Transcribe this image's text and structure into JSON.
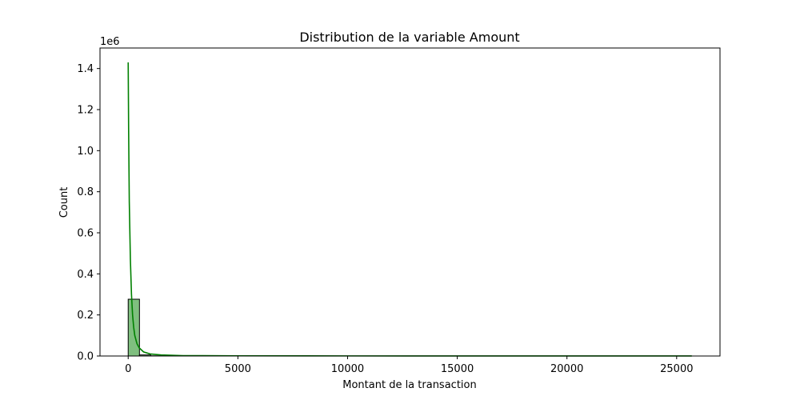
{
  "chart_data": {
    "type": "bar",
    "title": "Distribution de la variable Amount",
    "xlabel": "Montant de la transaction",
    "ylabel": "Count",
    "y_multiplier_label": "1e6",
    "xlim": [
      -1285,
      26976
    ],
    "ylim": [
      0,
      1.5
    ],
    "x_ticks": [
      0,
      5000,
      10000,
      15000,
      20000,
      25000
    ],
    "y_ticks": [
      0,
      0.2,
      0.4,
      0.6,
      0.8,
      1.0,
      1.2,
      1.4
    ],
    "x_tick_labels": [
      "0",
      "5000",
      "10000",
      "15000",
      "20000",
      "25000"
    ],
    "y_tick_labels": [
      "0.0",
      "0.2",
      "0.4",
      "0.6",
      "0.8",
      "1.0",
      "1.2",
      "1.4"
    ],
    "grid": false,
    "colors": {
      "bar_fill": "#7fbf7f",
      "bar_edge": "#000000",
      "kde_line": "#008000"
    },
    "bins": [
      {
        "x0": 0,
        "x1": 514,
        "count": 0.2765
      },
      {
        "x0": 514,
        "x1": 1028,
        "count": 0.0052
      },
      {
        "x0": 1028,
        "x1": 1542,
        "count": 0.0011
      },
      {
        "x0": 1542,
        "x1": 2056,
        "count": 0.0004
      },
      {
        "x0": 2056,
        "x1": 2570,
        "count": 0.0002
      },
      {
        "x0": 2570,
        "x1": 3084,
        "count": 0.0001
      },
      {
        "x0": 3084,
        "x1": 25691,
        "count": 0.0
      }
    ],
    "kde": {
      "x": [
        0,
        20,
        50,
        100,
        150,
        200,
        250,
        300,
        400,
        500,
        700,
        1000,
        1500,
        2500,
        5000,
        10000,
        15000,
        20000,
        25691
      ],
      "y": [
        1.43,
        1.1,
        0.75,
        0.47,
        0.3,
        0.2,
        0.14,
        0.1,
        0.06,
        0.04,
        0.02,
        0.01,
        0.005,
        0.002,
        0.001,
        0.0005,
        0.0003,
        0.0002,
        0.0001
      ]
    }
  }
}
